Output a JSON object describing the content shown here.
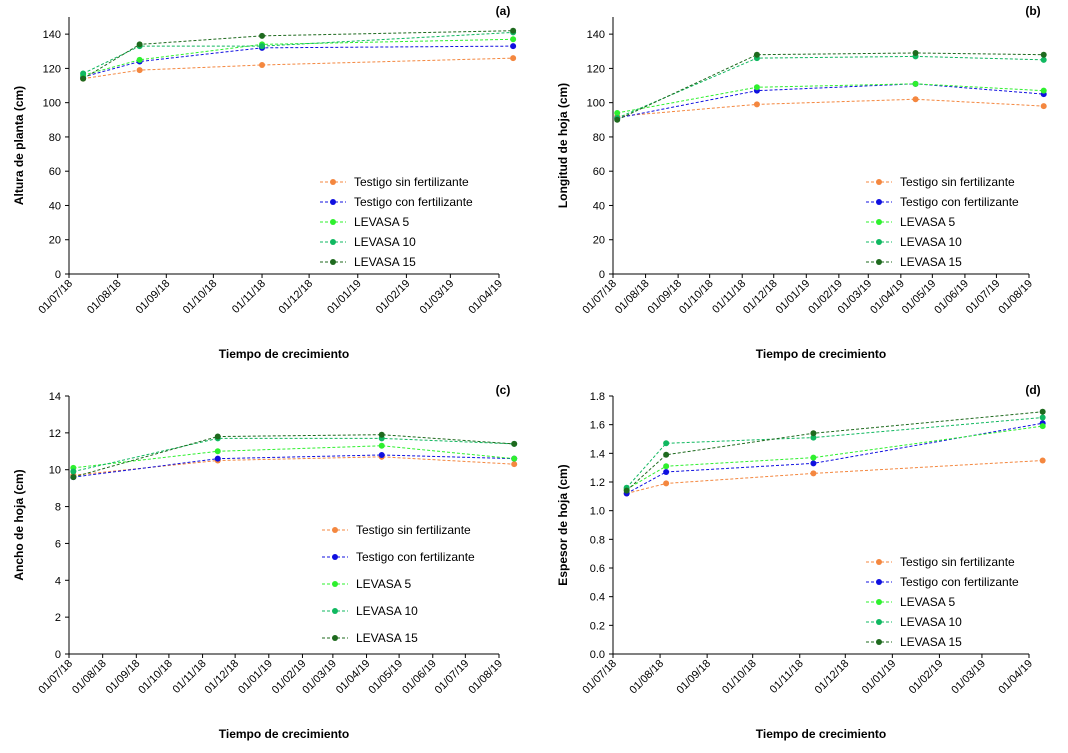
{
  "colors": {
    "Testigo sin fertilizante": "#f4873f",
    "Testigo con fertilizante": "#1010e0",
    "LEVASA 5": "#2ef02e",
    "LEVASA 10": "#10b860",
    "LEVASA 15": "#1e6a1e"
  },
  "chart_data": [
    {
      "type": "line",
      "panel_label": "(a)",
      "ylabel": "Altura de planta (cm)",
      "xlabel": "Tiempo de crecimiento",
      "ylim": [
        0,
        150
      ],
      "yticks": [
        0,
        20,
        40,
        60,
        80,
        100,
        120,
        140
      ],
      "xlim": [
        "2018-07-01",
        "2019-04-01"
      ],
      "xticks": [
        "2018-07-01",
        "2018-08-01",
        "2018-09-01",
        "2018-10-01",
        "2018-11-01",
        "2018-12-01",
        "2019-01-01",
        "2019-02-01",
        "2019-03-01",
        "2019-04-01"
      ],
      "xtick_labels": [
        "01/07/18",
        "01/08/18",
        "01/09/18",
        "01/10/18",
        "01/11/18",
        "01/12/18",
        "01/01/19",
        "01/02/19",
        "01/03/19",
        "01/04/19"
      ],
      "x": [
        "2018-07-10",
        "2018-08-15",
        "2018-11-01",
        "2019-04-10"
      ],
      "series": [
        {
          "name": "Testigo sin fertilizante",
          "values": [
            114,
            119,
            122,
            126
          ]
        },
        {
          "name": "Testigo con fertilizante",
          "values": [
            115,
            124,
            132,
            133
          ]
        },
        {
          "name": "LEVASA 5",
          "values": [
            116,
            125,
            134,
            137
          ]
        },
        {
          "name": "LEVASA 10",
          "values": [
            117,
            133,
            133,
            141
          ]
        },
        {
          "name": "LEVASA 15",
          "values": [
            114,
            134,
            139,
            142
          ]
        }
      ]
    },
    {
      "type": "line",
      "panel_label": "(b)",
      "ylabel": "Longitud de hoja (cm)",
      "xlabel": "Tiempo de crecimiento",
      "ylim": [
        0,
        150
      ],
      "yticks": [
        0,
        20,
        40,
        60,
        80,
        100,
        120,
        140
      ],
      "xlim": [
        "2018-07-01",
        "2019-08-01"
      ],
      "xticks": [
        "2018-07-01",
        "2018-08-01",
        "2018-09-01",
        "2018-10-01",
        "2018-11-01",
        "2018-12-01",
        "2019-01-01",
        "2019-02-01",
        "2019-03-01",
        "2019-04-01",
        "2019-05-01",
        "2019-06-01",
        "2019-07-01",
        "2019-08-01"
      ],
      "xtick_labels": [
        "01/07/18",
        "01/08/18",
        "01/09/18",
        "01/10/18",
        "01/11/18",
        "01/12/18",
        "01/01/19",
        "01/02/19",
        "01/03/19",
        "01/04/19",
        "01/05/19",
        "01/06/19",
        "01/07/19",
        "01/08/19"
      ],
      "x": [
        "2018-07-05",
        "2018-11-15",
        "2019-04-15",
        "2019-08-15"
      ],
      "series": [
        {
          "name": "Testigo sin fertilizante",
          "values": [
            92,
            99,
            102,
            98
          ]
        },
        {
          "name": "Testigo con fertilizante",
          "values": [
            91,
            107,
            111,
            105
          ]
        },
        {
          "name": "LEVASA 5",
          "values": [
            94,
            109,
            111,
            107
          ]
        },
        {
          "name": "LEVASA 10",
          "values": [
            91,
            126,
            127,
            125
          ]
        },
        {
          "name": "LEVASA 15",
          "values": [
            90,
            128,
            129,
            128
          ]
        }
      ]
    },
    {
      "type": "line",
      "panel_label": "(c)",
      "ylabel": "Ancho de hoja (cm)",
      "xlabel": "Tiempo de crecimiento",
      "ylim": [
        0,
        14
      ],
      "yticks": [
        0,
        2,
        4,
        6,
        8,
        10,
        12,
        14
      ],
      "xlim": [
        "2018-07-01",
        "2019-08-01"
      ],
      "xticks": [
        "2018-07-01",
        "2018-08-01",
        "2018-09-01",
        "2018-10-01",
        "2018-11-01",
        "2018-12-01",
        "2019-01-01",
        "2019-02-01",
        "2019-03-01",
        "2019-04-01",
        "2019-05-01",
        "2019-06-01",
        "2019-07-01",
        "2019-08-01"
      ],
      "xtick_labels": [
        "01/07/18",
        "01/08/18",
        "01/09/18",
        "01/10/18",
        "01/11/18",
        "01/12/18",
        "01/01/19",
        "01/02/19",
        "01/03/19",
        "01/04/19",
        "01/05/19",
        "01/06/19",
        "01/07/19",
        "01/08/19"
      ],
      "x": [
        "2018-07-05",
        "2018-11-15",
        "2019-04-15",
        "2019-08-15"
      ],
      "series": [
        {
          "name": "Testigo sin fertilizante",
          "values": [
            9.7,
            10.5,
            10.7,
            10.3
          ]
        },
        {
          "name": "Testigo con fertilizante",
          "values": [
            9.6,
            10.6,
            10.8,
            10.6
          ]
        },
        {
          "name": "LEVASA 5",
          "values": [
            10.1,
            11.0,
            11.3,
            10.6
          ]
        },
        {
          "name": "LEVASA 10",
          "values": [
            9.9,
            11.7,
            11.7,
            11.4
          ]
        },
        {
          "name": "LEVASA 15",
          "values": [
            9.6,
            11.8,
            11.9,
            11.4
          ]
        }
      ]
    },
    {
      "type": "line",
      "panel_label": "(d)",
      "ylabel": "Espesor de hoja (cm)",
      "xlabel": "Tiempo de crecimiento",
      "ylim": [
        0,
        1.8
      ],
      "yticks": [
        0.0,
        0.2,
        0.4,
        0.6,
        0.8,
        1.0,
        1.2,
        1.4,
        1.6,
        1.8
      ],
      "ytick_labels": [
        "0.0",
        "0.2",
        "0.4",
        "0.6",
        "0.8",
        "1.0",
        "1.2",
        "1.4",
        "1.6",
        "1.8"
      ],
      "xlim": [
        "2018-07-01",
        "2019-04-01"
      ],
      "xticks": [
        "2018-07-01",
        "2018-08-01",
        "2018-09-01",
        "2018-10-01",
        "2018-11-01",
        "2018-12-01",
        "2019-01-01",
        "2019-02-01",
        "2019-03-01",
        "2019-04-01"
      ],
      "xtick_labels": [
        "01/07/18",
        "01/08/18",
        "01/09/18",
        "01/10/18",
        "01/11/18",
        "01/12/18",
        "01/01/19",
        "01/02/19",
        "01/03/19",
        "01/04/19"
      ],
      "x": [
        "2018-07-10",
        "2018-08-05",
        "2018-11-10",
        "2019-04-10"
      ],
      "series": [
        {
          "name": "Testigo sin fertilizante",
          "values": [
            1.12,
            1.19,
            1.26,
            1.35
          ]
        },
        {
          "name": "Testigo con fertilizante",
          "values": [
            1.12,
            1.27,
            1.33,
            1.61
          ]
        },
        {
          "name": "LEVASA 5",
          "values": [
            1.15,
            1.31,
            1.37,
            1.59
          ]
        },
        {
          "name": "LEVASA 10",
          "values": [
            1.16,
            1.47,
            1.51,
            1.65
          ]
        },
        {
          "name": "LEVASA 15",
          "values": [
            1.14,
            1.39,
            1.54,
            1.69
          ]
        }
      ]
    }
  ]
}
